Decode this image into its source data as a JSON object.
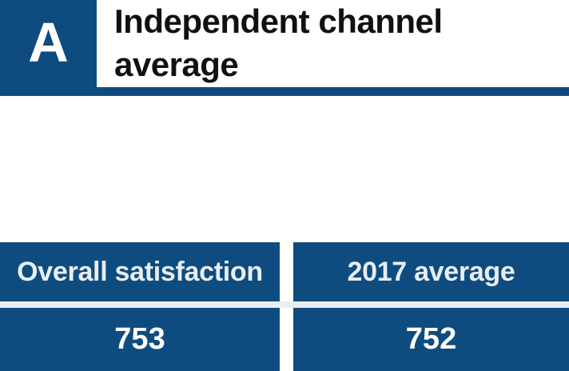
{
  "header": {
    "badge": "A",
    "title": "Independent channel average"
  },
  "table": {
    "columns": [
      {
        "header": "Overall satisfaction",
        "value": "753"
      },
      {
        "header": "2017 average",
        "value": "752"
      }
    ]
  },
  "colors": {
    "brand_blue": "#0e4c7f",
    "divider_gray": "#ebedf0",
    "title_text": "#111111",
    "cell_text": "#ffffff"
  },
  "chart_data": {
    "type": "table",
    "title": "Independent channel average",
    "columns": [
      "Overall satisfaction",
      "2017 average"
    ],
    "rows": [
      [
        753,
        752
      ]
    ]
  }
}
